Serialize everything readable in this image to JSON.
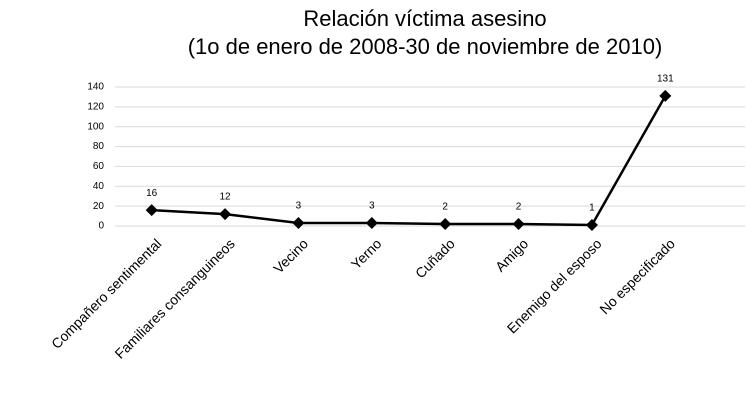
{
  "chart_data": {
    "type": "line",
    "title": "Relación víctima asesino",
    "subtitle": "(1o de enero de 2008-30 de noviembre de 2010)",
    "categories": [
      "Compañero sentimental",
      "Familiares consanguineos",
      "Vecino",
      "Yerno",
      "Cuñado",
      "Amigo",
      "Enemigo del esposo",
      "No especificado"
    ],
    "values": [
      16,
      12,
      3,
      3,
      2,
      2,
      1,
      131
    ],
    "color": "#000000",
    "ylim": [
      0,
      140
    ],
    "yticks": [
      0,
      20,
      40,
      60,
      80,
      100,
      120,
      140
    ],
    "grid": true
  }
}
